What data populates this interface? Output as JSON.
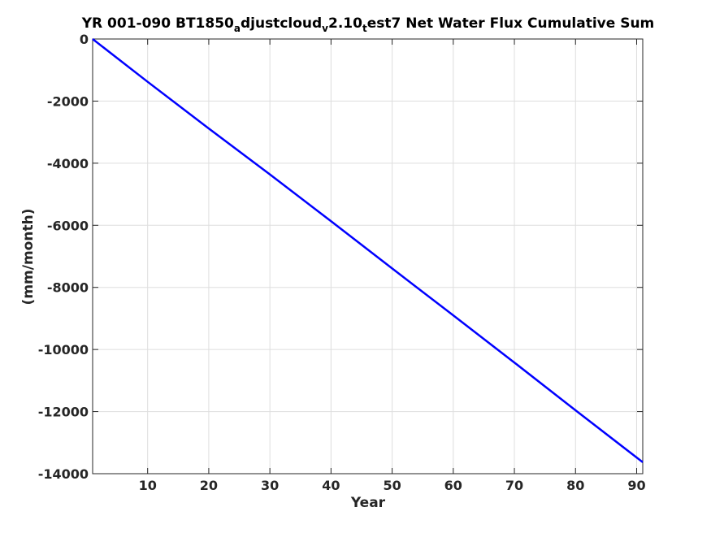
{
  "chart_data": {
    "type": "line",
    "title": {
      "segments": [
        {
          "text": "YR 001-090 BT1850",
          "sub": false
        },
        {
          "text": "a",
          "sub": true
        },
        {
          "text": "djustcloud",
          "sub": false
        },
        {
          "text": "v",
          "sub": true
        },
        {
          "text": "2.10",
          "sub": false
        },
        {
          "text": "t",
          "sub": true
        },
        {
          "text": "est7 Net Water Flux Cumulative Sum",
          "sub": false
        }
      ]
    },
    "xlabel": "Year",
    "ylabel": "(mm/month)",
    "xlim": [
      1,
      91
    ],
    "ylim": [
      -14000,
      0
    ],
    "xticks": [
      10,
      20,
      30,
      40,
      50,
      60,
      70,
      80,
      90
    ],
    "yticks": [
      0,
      -2000,
      -4000,
      -6000,
      -8000,
      -10000,
      -12000,
      -14000
    ],
    "grid": true,
    "series": [
      {
        "color": "#0000ff",
        "x": [
          1,
          10,
          20,
          30,
          40,
          50,
          60,
          70,
          80,
          91
        ],
        "y": [
          0,
          -1380,
          -2880,
          -4360,
          -5870,
          -7390,
          -8900,
          -10420,
          -11960,
          -13630
        ]
      }
    ]
  }
}
